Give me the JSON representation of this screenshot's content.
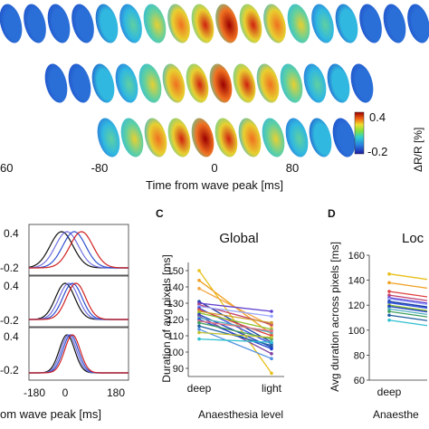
{
  "figure": {
    "top": {
      "xlabel": "Time from wave peak [ms]",
      "ticks": [
        "60",
        "-80",
        "0",
        "80"
      ],
      "colorbar": {
        "label": "ΔR/R [%]",
        "max": "0.4",
        "min": "-0.2"
      }
    },
    "panel_b": {
      "xlabel": "om wave peak [ms]",
      "xticks": [
        "-180",
        "0",
        "180"
      ],
      "yticks": [
        [
          "0.4",
          "-0.2"
        ],
        [
          "0.4",
          "-0.2"
        ],
        [
          "0.4",
          "-0.2"
        ]
      ]
    },
    "panel_c": {
      "letter": "C",
      "title": "Global",
      "ylabel": "Duration of avg pixels [ms]",
      "xlabel": "Anaesthesia level",
      "yticks": [
        "150",
        "140",
        "130",
        "120",
        "110",
        "100",
        "90"
      ],
      "xticks": [
        "deep",
        "light"
      ]
    },
    "panel_d": {
      "letter": "D",
      "title": "Loc",
      "ylabel": "Avg duration across pixels [ms]",
      "xlabel": "Anaesthe",
      "yticks": [
        "160",
        "140",
        "120",
        "100",
        "80",
        "60"
      ],
      "xticks": [
        "deep"
      ]
    }
  },
  "chart_data": [
    {
      "type": "line",
      "title": "Global",
      "xlabel": "Anaesthesia level",
      "ylabel": "Duration of avg pixels [ms]",
      "categories": [
        "deep",
        "light"
      ],
      "ylim": [
        85,
        155
      ],
      "series": [
        {
          "values": [
            150,
            87
          ],
          "color": "#e8c01a"
        },
        {
          "values": [
            144,
            111
          ],
          "color": "#f0a020"
        },
        {
          "values": [
            139,
            116
          ],
          "color": "#f4a640"
        },
        {
          "values": [
            131,
            106
          ],
          "color": "#1a3fa0"
        },
        {
          "values": [
            130,
            125
          ],
          "color": "#6040d0"
        },
        {
          "values": [
            129,
            117
          ],
          "color": "#c04070"
        },
        {
          "values": [
            128,
            122
          ],
          "color": "#9aa8ff"
        },
        {
          "values": [
            127,
            105
          ],
          "color": "#3050e0"
        },
        {
          "values": [
            126,
            110
          ],
          "color": "#e04040"
        },
        {
          "values": [
            125,
            118
          ],
          "color": "#d0a030"
        },
        {
          "values": [
            124,
            114
          ],
          "color": "#90c030"
        },
        {
          "values": [
            123,
            103
          ],
          "color": "#2040c0"
        },
        {
          "values": [
            122,
            99
          ],
          "color": "#8040a0"
        },
        {
          "values": [
            121,
            112
          ],
          "color": "#50b0c0"
        },
        {
          "values": [
            120,
            102
          ],
          "color": "#1840d0"
        },
        {
          "values": [
            119,
            113
          ],
          "color": "#e07080"
        },
        {
          "values": [
            118,
            108
          ],
          "color": "#40a060"
        },
        {
          "values": [
            116,
            104
          ],
          "color": "#2060a0"
        },
        {
          "values": [
            114,
            96
          ],
          "color": "#5090e0"
        },
        {
          "values": [
            112,
            109
          ],
          "color": "#c0c030"
        },
        {
          "values": [
            108,
            106
          ],
          "color": "#30c0d0"
        }
      ]
    },
    {
      "type": "line",
      "title": "Loc",
      "xlabel": "Anaesthe",
      "ylabel": "Avg duration across pixels [ms]",
      "categories": [
        "deep"
      ],
      "ylim": [
        60,
        160
      ],
      "series": [
        {
          "values": [
            145
          ],
          "color": "#e8c01a"
        },
        {
          "values": [
            138
          ],
          "color": "#f0a020"
        },
        {
          "values": [
            131
          ],
          "color": "#e04040"
        },
        {
          "values": [
            128
          ],
          "color": "#c04070"
        },
        {
          "values": [
            126
          ],
          "color": "#6040d0"
        },
        {
          "values": [
            125
          ],
          "color": "#9aa8ff"
        },
        {
          "values": [
            123
          ],
          "color": "#1a3fa0"
        },
        {
          "values": [
            122
          ],
          "color": "#3050e0"
        },
        {
          "values": [
            120
          ],
          "color": "#90c030"
        },
        {
          "values": [
            119
          ],
          "color": "#2040c0"
        },
        {
          "values": [
            117
          ],
          "color": "#50b0c0"
        },
        {
          "values": [
            115
          ],
          "color": "#40a060"
        },
        {
          "values": [
            112
          ],
          "color": "#2060a0"
        },
        {
          "values": [
            108
          ],
          "color": "#30c0d0"
        }
      ]
    }
  ]
}
